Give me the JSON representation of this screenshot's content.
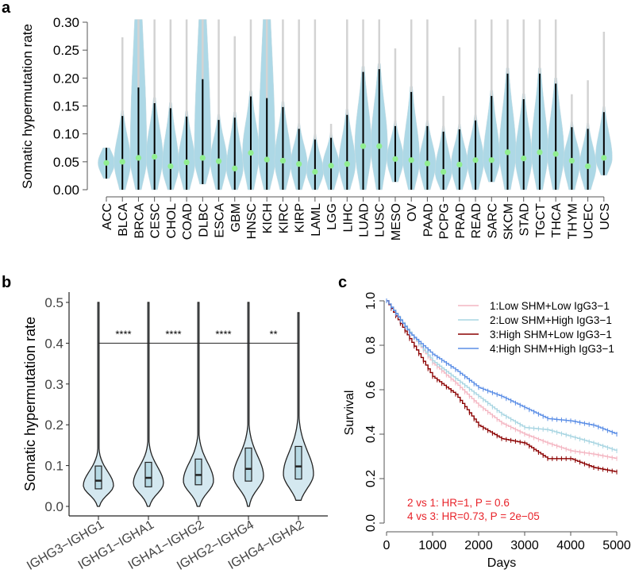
{
  "chart_data": [
    {
      "panel": "a",
      "type": "violin",
      "ylabel": "Somatic hypermutation rate",
      "ylim": [
        0,
        0.3
      ],
      "yticks": [
        "0.00",
        "0.05",
        "0.10",
        "0.15",
        "0.20",
        "0.25",
        "0.30"
      ],
      "fill_color": "#add8e6",
      "whisker_color": "#000000",
      "max_line_color": "#d3d3d3",
      "median_color": "#90ee90",
      "categories": [
        "ACC",
        "BLCA",
        "BRCA",
        "CESC",
        "CHOL",
        "COAD",
        "DLBC",
        "ESCA",
        "GBM",
        "HNSC",
        "KICH",
        "KIRC",
        "KIRP",
        "LAML",
        "LGG",
        "LIHC",
        "LUAD",
        "LUSC",
        "MESO",
        "OV",
        "PAAD",
        "PCPG",
        "PRAD",
        "READ",
        "SARC",
        "SKCM",
        "STAD",
        "TGCT",
        "THCA",
        "THYM",
        "UCEC",
        "UCS"
      ],
      "median": [
        0.048,
        0.05,
        0.057,
        0.059,
        0.042,
        0.049,
        0.057,
        0.051,
        0.038,
        0.066,
        0.054,
        0.052,
        0.046,
        0.032,
        0.043,
        0.046,
        0.078,
        0.078,
        0.055,
        0.053,
        0.047,
        0.032,
        0.045,
        0.053,
        0.053,
        0.067,
        0.056,
        0.067,
        0.064,
        0.052,
        0.042,
        0.057
      ],
      "whisker_top": [
        0.075,
        0.132,
        0.183,
        0.155,
        0.146,
        0.131,
        0.198,
        0.125,
        0.129,
        0.167,
        0.164,
        0.148,
        0.109,
        0.09,
        0.093,
        0.134,
        0.211,
        0.216,
        0.114,
        0.175,
        0.114,
        0.104,
        0.108,
        0.124,
        0.168,
        0.208,
        0.162,
        0.208,
        0.19,
        0.112,
        0.109,
        0.139
      ],
      "max": [
        0.075,
        0.273,
        0.31,
        0.31,
        0.31,
        0.31,
        0.31,
        0.31,
        0.275,
        0.31,
        0.31,
        0.31,
        0.31,
        0.31,
        0.118,
        0.31,
        0.31,
        0.31,
        0.253,
        0.31,
        0.31,
        0.168,
        0.255,
        0.31,
        0.31,
        0.31,
        0.31,
        0.31,
        0.31,
        0.171,
        0.196,
        0.283
      ],
      "min": [
        0.02,
        0,
        0,
        0,
        0,
        0,
        0.01,
        0,
        0,
        0,
        0,
        0,
        0,
        0,
        0,
        0,
        0,
        0,
        0.014,
        0,
        0,
        0,
        0,
        0,
        0.014,
        0,
        0,
        0,
        0,
        0,
        0,
        0.026
      ]
    },
    {
      "panel": "b",
      "type": "violin",
      "ylabel": "Somatic hypermutation rate",
      "ylim": [
        0,
        0.5
      ],
      "yticks": [
        "0.0",
        "0.1",
        "0.2",
        "0.3",
        "0.4",
        "0.5"
      ],
      "fill_color": "#d4e8f0",
      "categories": [
        "IGHG3−IGHG1",
        "IGHG1−IGHA1",
        "IGHA1−IGHG2",
        "IGHG2−IGHG4",
        "IGHG4−IGHA2"
      ],
      "median": [
        0.063,
        0.07,
        0.077,
        0.092,
        0.098
      ],
      "q1": [
        0.043,
        0.048,
        0.053,
        0.062,
        0.067
      ],
      "q3": [
        0.099,
        0.108,
        0.116,
        0.143,
        0.147
      ],
      "min": [
        0.0,
        0.0,
        0.0,
        0.0,
        0.015
      ],
      "max": [
        0.5,
        0.5,
        0.5,
        0.5,
        0.475
      ],
      "comparison_line_y": 0.4,
      "significance": [
        "****",
        "****",
        "****",
        "**"
      ]
    },
    {
      "panel": "c",
      "type": "line",
      "xlabel": "Days",
      "ylabel": "Survival",
      "xlim": [
        0,
        5000
      ],
      "ylim": [
        0,
        1.0
      ],
      "xticks": [
        "0",
        "1000",
        "2000",
        "3000",
        "4000",
        "5000"
      ],
      "yticks": [
        "0.0",
        "0.2",
        "0.4",
        "0.6",
        "0.8",
        "1.0"
      ],
      "legend_position": "top-right",
      "x": [
        0,
        500,
        1000,
        1500,
        2000,
        2500,
        3000,
        3500,
        4000,
        4500,
        5000
      ],
      "series": [
        {
          "name": "1:Low SHM+Low IgG3−1",
          "color": "#f4b6c2",
          "values": [
            1.0,
            0.86,
            0.72,
            0.63,
            0.53,
            0.45,
            0.4,
            0.36,
            0.325,
            0.31,
            0.29
          ]
        },
        {
          "name": "2:Low SHM+High IgG3−1",
          "color": "#a8d5e2",
          "values": [
            1.0,
            0.86,
            0.73,
            0.65,
            0.57,
            0.49,
            0.43,
            0.42,
            0.39,
            0.36,
            0.325
          ]
        },
        {
          "name": "3:High SHM+Low IgG3−1",
          "color": "#8b0000",
          "values": [
            1.0,
            0.83,
            0.66,
            0.58,
            0.44,
            0.38,
            0.36,
            0.29,
            0.29,
            0.25,
            0.23
          ]
        },
        {
          "name": "4:High SHM+High IgG3−1",
          "color": "#5b8ee6",
          "values": [
            1.0,
            0.855,
            0.76,
            0.69,
            0.61,
            0.57,
            0.52,
            0.47,
            0.46,
            0.44,
            0.4
          ]
        }
      ],
      "annotations": [
        "2 vs 1: HR=1, P = 0.6",
        "4 vs 3: HR=0.73, P = 2e−05"
      ],
      "annotation_color": "#e8232a"
    }
  ],
  "panel_labels": [
    "a",
    "b",
    "c"
  ]
}
